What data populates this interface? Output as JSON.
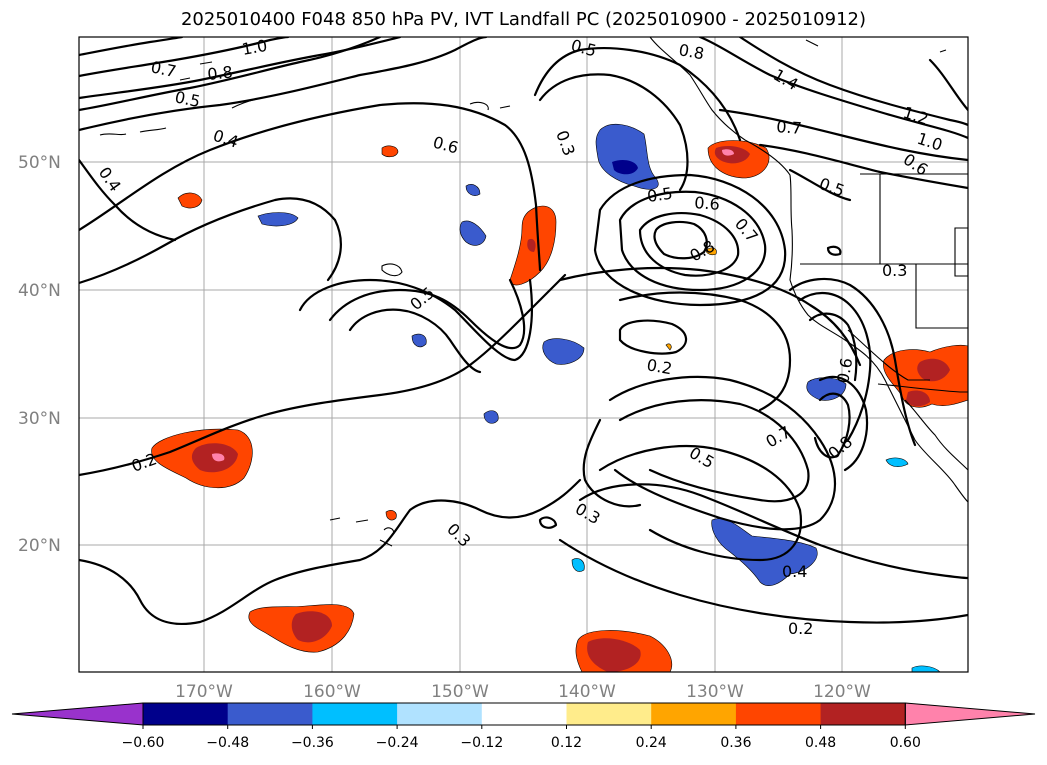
{
  "title": "2025010400 F048 850 hPa PV, IVT Landfall PC (2025010900 - 2025010912)",
  "lat_labels": [
    "50°N",
    "40°N",
    "30°N",
    "20°N"
  ],
  "lon_labels": [
    "170°W",
    "160°W",
    "150°W",
    "140°W",
    "130°W",
    "120°W"
  ],
  "contour_labels": [
    "1.0",
    "0.7",
    "0.8",
    "0.5",
    "0.4",
    "0.4",
    "0.6",
    "0.3",
    "0.5",
    "0.8",
    "1.4",
    "0.7",
    "1.2",
    "1.0",
    "0.6",
    "0.5",
    "0.5",
    "0.6",
    "0.7",
    "0.8",
    "0.3",
    "0.5",
    "0.2",
    "0.6",
    "0.2",
    "0.7",
    "0.5",
    "0.8",
    "0.3",
    "0.3",
    "0.4",
    "0.2"
  ],
  "colorbar": {
    "ticks": [
      "−0.60",
      "−0.48",
      "−0.36",
      "−0.24",
      "−0.12",
      "0.12",
      "0.24",
      "0.36",
      "0.48",
      "0.60"
    ],
    "colors": [
      "#9932cc",
      "#00008b",
      "#3a5bcd",
      "#00bfff",
      "#b0e2ff",
      "#ffffff",
      "#ffec8b",
      "#ffa500",
      "#ff4500",
      "#b22222",
      "#ff82ab"
    ]
  },
  "shading_colors": {
    "neg_light": "#00bfff",
    "neg_mid": "#3a5bcd",
    "neg_dark": "#00008b",
    "pos_yellow": "#ffec8b",
    "pos_orange": "#ffa500",
    "pos_red": "#ff4500",
    "pos_dark": "#b22222",
    "pos_pink": "#ff82ab"
  }
}
